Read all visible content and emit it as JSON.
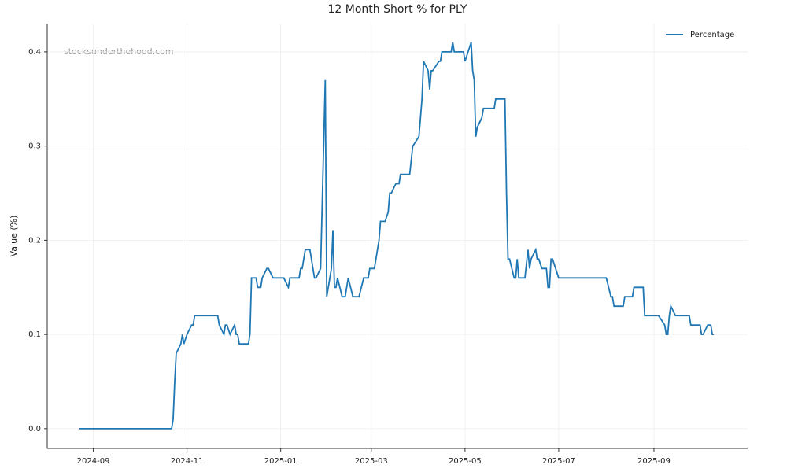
{
  "chart_data": {
    "type": "line",
    "title": "12 Month Short % for PLY",
    "ylabel": "Value (%)",
    "watermark": "stocksunderthehood.com",
    "legend": "upper right",
    "grid": true,
    "xlim": [
      "2024-08-02",
      "2025-11-01"
    ],
    "ylim": [
      -0.021,
      0.43
    ],
    "xticks": [
      {
        "value": "2024-09-01",
        "label": "2024-09"
      },
      {
        "value": "2024-11-01",
        "label": "2024-11"
      },
      {
        "value": "2025-01-01",
        "label": "2025-01"
      },
      {
        "value": "2025-03-01",
        "label": "2025-03"
      },
      {
        "value": "2025-05-01",
        "label": "2025-05"
      },
      {
        "value": "2025-07-01",
        "label": "2025-07"
      },
      {
        "value": "2025-09-01",
        "label": "2025-09"
      }
    ],
    "yticks": [
      {
        "value": 0,
        "label": "0.0"
      },
      0.1,
      0.2,
      0.3,
      0.4
    ],
    "x": [
      "2024-08-23",
      "2024-10-22",
      "2024-10-23",
      "2024-10-24",
      "2024-10-25",
      "2024-10-28",
      "2024-10-29",
      "2024-10-30",
      "2024-11-01",
      "2024-11-04",
      "2024-11-05",
      "2024-11-06",
      "2024-11-21",
      "2024-11-22",
      "2024-11-25",
      "2024-11-26",
      "2024-11-27",
      "2024-11-29",
      "2024-12-02",
      "2024-12-03",
      "2024-12-04",
      "2024-12-05",
      "2024-12-11",
      "2024-12-12",
      "2024-12-13",
      "2024-12-16",
      "2024-12-17",
      "2024-12-19",
      "2024-12-20",
      "2024-12-23",
      "2024-12-24",
      "2024-12-27",
      "2025-01-03",
      "2025-01-06",
      "2025-01-07",
      "2025-01-13",
      "2025-01-14",
      "2025-01-15",
      "2025-01-17",
      "2025-01-20",
      "2025-01-23",
      "2025-01-24",
      "2025-01-27",
      "2025-01-30",
      "2025-01-31",
      "2025-02-03",
      "2025-02-04",
      "2025-02-05",
      "2025-02-06",
      "2025-02-07",
      "2025-02-10",
      "2025-02-12",
      "2025-02-14",
      "2025-02-17",
      "2025-02-21",
      "2025-02-24",
      "2025-02-27",
      "2025-02-28",
      "2025-03-03",
      "2025-03-04",
      "2025-03-06",
      "2025-03-07",
      "2025-03-10",
      "2025-03-12",
      "2025-03-13",
      "2025-03-14",
      "2025-03-17",
      "2025-03-19",
      "2025-03-20",
      "2025-03-26",
      "2025-03-28",
      "2025-04-01",
      "2025-04-02",
      "2025-04-03",
      "2025-04-04",
      "2025-04-07",
      "2025-04-08",
      "2025-04-09",
      "2025-04-10",
      "2025-04-14",
      "2025-04-15",
      "2025-04-16",
      "2025-04-22",
      "2025-04-23",
      "2025-04-24",
      "2025-04-30",
      "2025-05-01",
      "2025-05-05",
      "2025-05-06",
      "2025-05-07",
      "2025-05-08",
      "2025-05-09",
      "2025-05-12",
      "2025-05-13",
      "2025-05-20",
      "2025-05-21",
      "2025-05-27",
      "2025-05-28",
      "2025-05-29",
      "2025-05-30",
      "2025-06-02",
      "2025-06-03",
      "2025-06-04",
      "2025-06-05",
      "2025-06-09",
      "2025-06-11",
      "2025-06-12",
      "2025-06-13",
      "2025-06-16",
      "2025-06-17",
      "2025-06-18",
      "2025-06-20",
      "2025-06-23",
      "2025-06-24",
      "2025-06-25",
      "2025-06-26",
      "2025-06-27",
      "2025-07-01",
      "2025-08-01",
      "2025-08-04",
      "2025-08-05",
      "2025-08-06",
      "2025-08-12",
      "2025-08-13",
      "2025-08-18",
      "2025-08-19",
      "2025-08-25",
      "2025-08-26",
      "2025-09-04",
      "2025-09-08",
      "2025-09-09",
      "2025-09-10",
      "2025-09-11",
      "2025-09-12",
      "2025-09-15",
      "2025-09-24",
      "2025-09-25",
      "2025-10-01",
      "2025-10-02",
      "2025-10-03",
      "2025-10-06",
      "2025-10-08",
      "2025-10-09",
      "2025-10-10"
    ],
    "series": [
      {
        "name": "Percentage",
        "color": "#1f77b4",
        "values": [
          0.0,
          0.0,
          0.01,
          0.05,
          0.08,
          0.09,
          0.1,
          0.09,
          0.1,
          0.11,
          0.11,
          0.12,
          0.12,
          0.11,
          0.1,
          0.11,
          0.11,
          0.1,
          0.11,
          0.1,
          0.1,
          0.09,
          0.09,
          0.1,
          0.16,
          0.16,
          0.15,
          0.15,
          0.16,
          0.17,
          0.17,
          0.16,
          0.16,
          0.15,
          0.16,
          0.16,
          0.17,
          0.17,
          0.19,
          0.19,
          0.16,
          0.16,
          0.17,
          0.37,
          0.14,
          0.17,
          0.21,
          0.15,
          0.15,
          0.16,
          0.14,
          0.14,
          0.16,
          0.14,
          0.14,
          0.16,
          0.16,
          0.17,
          0.17,
          0.18,
          0.2,
          0.22,
          0.22,
          0.23,
          0.25,
          0.25,
          0.26,
          0.26,
          0.27,
          0.27,
          0.3,
          0.31,
          0.33,
          0.35,
          0.39,
          0.38,
          0.36,
          0.38,
          0.38,
          0.39,
          0.39,
          0.4,
          0.4,
          0.41,
          0.4,
          0.4,
          0.39,
          0.41,
          0.38,
          0.37,
          0.31,
          0.32,
          0.33,
          0.34,
          0.34,
          0.35,
          0.35,
          0.25,
          0.18,
          0.18,
          0.16,
          0.16,
          0.18,
          0.16,
          0.16,
          0.19,
          0.17,
          0.18,
          0.19,
          0.18,
          0.18,
          0.17,
          0.17,
          0.15,
          0.15,
          0.18,
          0.18,
          0.16,
          0.16,
          0.14,
          0.14,
          0.13,
          0.13,
          0.14,
          0.14,
          0.15,
          0.15,
          0.12,
          0.12,
          0.11,
          0.1,
          0.1,
          0.12,
          0.13,
          0.12,
          0.12,
          0.11,
          0.11,
          0.1,
          0.1,
          0.11,
          0.11,
          0.1,
          0.1
        ]
      }
    ]
  }
}
